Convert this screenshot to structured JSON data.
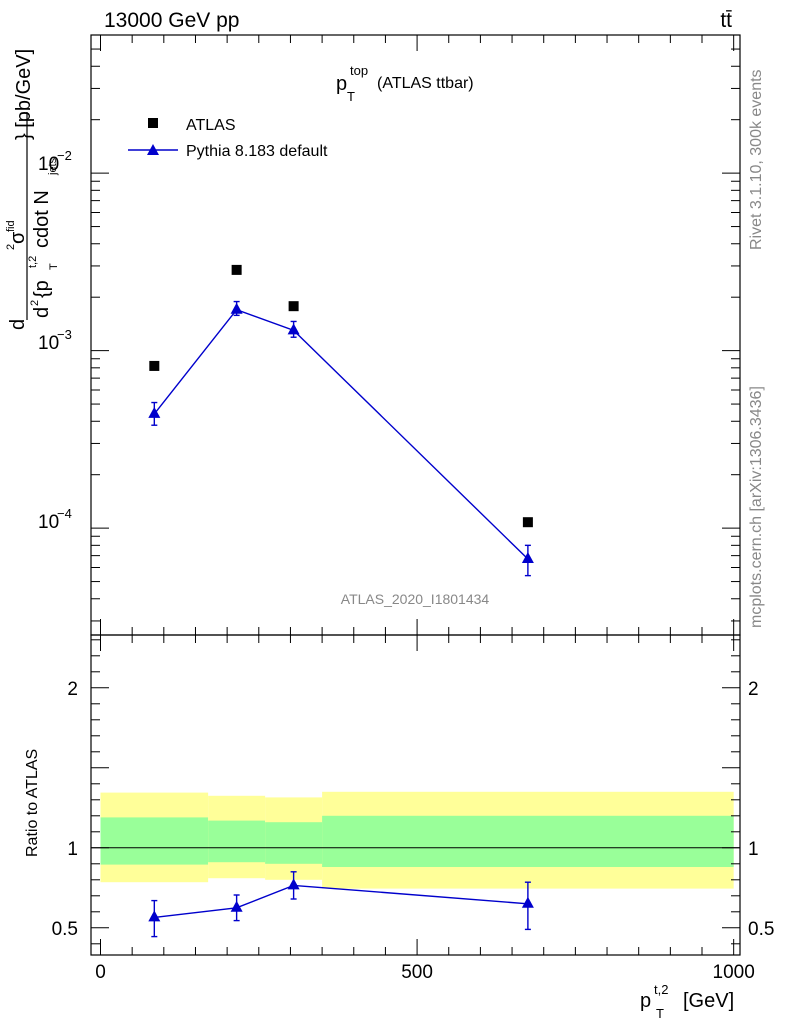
{
  "header": {
    "energy_label": "13000 GeV pp",
    "process_label": "tt̄"
  },
  "side_labels": {
    "rivet": "Rivet 3.1.10,  300k events",
    "mcplots": "mcplots.cern.ch [arXiv:1306.3436]"
  },
  "chart_data": [
    {
      "type": "scatter",
      "title_main": "p",
      "title_sup": "top",
      "title_sub": "T",
      "title_suffix": "(ATLAS ttbar)",
      "analysis_id": "ATLAS_2020_I1801434",
      "ylabel": "d^2σ^{fid} / d^2{p_T^{t,2} cdot N_jets} [pb/GeV]",
      "ylabel_parts": {
        "num": "d",
        "num_sym": "σ",
        "num_sup": "fid",
        "den": "d",
        "den_text": "{p",
        "den_sup": "t,2",
        "den_sub": "T",
        "den_tail": "cdot N",
        "den_tail_sub": "jets",
        "unit": "} [pb/GeV]"
      },
      "yscale": "log",
      "xlim": [
        -15,
        1010
      ],
      "ylim": [
        2.5e-05,
        0.06
      ],
      "y_ticks": [
        {
          "value": 0.0001,
          "base": "10",
          "exp": "−4"
        },
        {
          "value": 0.001,
          "base": "10",
          "exp": "−3"
        },
        {
          "value": 0.01,
          "base": "10",
          "exp": "−2"
        }
      ],
      "legend_position": "top-left",
      "series": [
        {
          "name": "ATLAS",
          "marker": "square",
          "color": "#000000",
          "x": [
            85,
            215,
            305,
            675
          ],
          "y": [
            0.00082,
            0.00285,
            0.00178,
            0.000108
          ]
        },
        {
          "name": "Pythia 8.183 default",
          "marker": "triangle",
          "color": "#0000cc",
          "x": [
            85,
            215,
            305,
            675
          ],
          "y": [
            0.00044,
            0.0017,
            0.0013,
            6.7e-05
          ],
          "y_err_low": [
            0.00038,
            0.00158,
            0.00119,
            5.4e-05
          ],
          "y_err_high": [
            0.00051,
            0.00189,
            0.00146,
            8e-05
          ]
        }
      ]
    },
    {
      "type": "scatter",
      "ylabel": "Ratio to ATLAS",
      "xlabel": "p_T^{t,2} [GeV]",
      "xlabel_parts": {
        "main": "p",
        "sup": "t,2",
        "sub": "T",
        "unit": "[GeV]"
      },
      "xlim": [
        -15,
        1010
      ],
      "ylim": [
        0.33,
        2.33
      ],
      "y_ticks": [
        {
          "value": 0.5,
          "label": "0.5"
        },
        {
          "value": 1,
          "label": "1"
        },
        {
          "value": 2,
          "label": "2"
        }
      ],
      "x_ticks": [
        {
          "value": 0,
          "label": "0"
        },
        {
          "value": 500,
          "label": "500"
        },
        {
          "value": 1000,
          "label": "1000"
        }
      ],
      "reference_line": 1,
      "bands": [
        {
          "x0": 0,
          "x1": 170,
          "yellow": [
            0.785,
            1.345
          ],
          "green": [
            0.895,
            1.19
          ]
        },
        {
          "x0": 170,
          "x1": 260,
          "yellow": [
            0.81,
            1.325
          ],
          "green": [
            0.91,
            1.17
          ]
        },
        {
          "x0": 260,
          "x1": 350,
          "yellow": [
            0.8,
            1.315
          ],
          "green": [
            0.9,
            1.16
          ]
        },
        {
          "x0": 350,
          "x1": 1000,
          "yellow": [
            0.745,
            1.35
          ],
          "green": [
            0.88,
            1.2
          ]
        }
      ],
      "band_colors": {
        "yellow": "#ffff99",
        "green": "#99ff99"
      },
      "series": [
        {
          "name": "Pythia 8.183 default",
          "color": "#0000cc",
          "x": [
            85,
            215,
            305,
            675
          ],
          "y": [
            0.565,
            0.625,
            0.765,
            0.65
          ],
          "y_err_low": [
            0.445,
            0.545,
            0.68,
            0.49
          ],
          "y_err_high": [
            0.67,
            0.705,
            0.85,
            0.785
          ]
        }
      ]
    }
  ]
}
